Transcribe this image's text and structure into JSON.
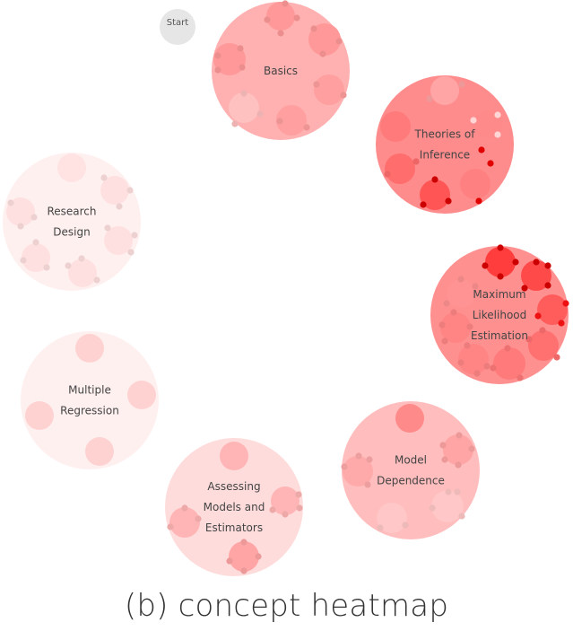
{
  "start": {
    "label": "Start",
    "color": "#e6e6e6"
  },
  "caption": "(b) concept heatmap",
  "legend_colors": {
    "low": "#fff0f0",
    "mid": "#ffb3b3",
    "high": "#ff6b6b",
    "max": "#d40000"
  },
  "concepts": [
    {
      "id": "basics",
      "lines": [
        "Basics"
      ],
      "fill": "#ffb0b0"
    },
    {
      "id": "theories-of-inference",
      "lines": [
        "Theories of",
        "Inference"
      ],
      "fill": "#ff8c8c"
    },
    {
      "id": "maximum-likelihood-estimation",
      "lines": [
        "Maximum",
        "Likelihood",
        "Estimation"
      ],
      "fill": "#ff9090"
    },
    {
      "id": "model-dependence",
      "lines": [
        "Model",
        "Dependence"
      ],
      "fill": "#ffbdbd"
    },
    {
      "id": "assessing-models-and-estimators",
      "lines": [
        "Assessing",
        "Models and",
        "Estimators"
      ],
      "fill": "#ffdcdc"
    },
    {
      "id": "multiple-regression",
      "lines": [
        "Multiple",
        "Regression"
      ],
      "fill": "#fff0f0"
    },
    {
      "id": "research-design",
      "lines": [
        "Research",
        "Design"
      ],
      "fill": "#fff0f0"
    }
  ]
}
